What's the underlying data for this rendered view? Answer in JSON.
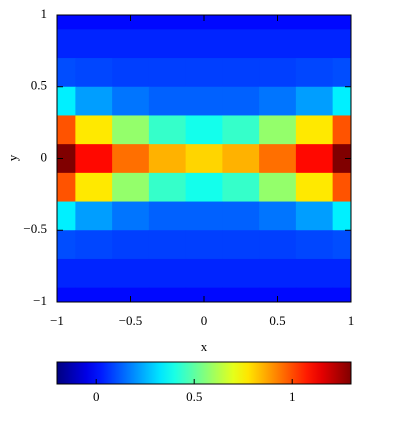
{
  "chart_data": {
    "type": "heatmap",
    "colormap": "jet",
    "xlabel": "x",
    "ylabel": "y",
    "x": [
      -1,
      -0.75,
      -0.5,
      -0.25,
      0,
      0.25,
      0.5,
      0.75,
      1
    ],
    "y": [
      1,
      0.8,
      0.6,
      0.4,
      0.2,
      0,
      -0.2,
      -0.4,
      -0.6,
      -0.8,
      -1
    ],
    "values": [
      [
        0,
        0,
        0,
        0,
        0,
        0,
        0,
        0,
        0
      ],
      [
        0.04,
        0.04,
        0.04,
        0.04,
        0.04,
        0.04,
        0.04,
        0.04,
        0.04
      ],
      [
        0.1,
        0.09,
        0.08,
        0.08,
        0.08,
        0.08,
        0.08,
        0.09,
        0.1
      ],
      [
        0.34,
        0.22,
        0.16,
        0.13,
        0.13,
        0.13,
        0.16,
        0.22,
        0.34
      ],
      [
        0.99,
        0.77,
        0.58,
        0.44,
        0.39,
        0.44,
        0.58,
        0.77,
        0.99
      ],
      [
        1.3,
        1.1,
        0.95,
        0.85,
        0.8,
        0.85,
        0.95,
        1.1,
        1.3
      ],
      [
        0.99,
        0.77,
        0.58,
        0.44,
        0.39,
        0.44,
        0.58,
        0.77,
        0.99
      ],
      [
        0.34,
        0.22,
        0.16,
        0.13,
        0.13,
        0.13,
        0.16,
        0.22,
        0.34
      ],
      [
        0.1,
        0.09,
        0.08,
        0.08,
        0.08,
        0.08,
        0.08,
        0.09,
        0.1
      ],
      [
        0.04,
        0.04,
        0.04,
        0.04,
        0.04,
        0.04,
        0.04,
        0.04,
        0.04
      ],
      [
        0,
        0,
        0,
        0,
        0,
        0,
        0,
        0,
        0
      ]
    ],
    "xlim": [
      -1,
      1
    ],
    "ylim": [
      -1,
      1
    ],
    "xticks": [
      {
        "value": -1,
        "label": "−1"
      },
      {
        "value": -0.5,
        "label": "−0.5"
      },
      0,
      0.5,
      1
    ],
    "yticks": [
      {
        "value": -1,
        "label": "−1"
      },
      {
        "value": -0.5,
        "label": "−0.5"
      },
      0,
      0.5,
      1
    ],
    "clim": [
      -0.2,
      1.3
    ],
    "cticks": [
      0,
      0.5,
      1
    ]
  }
}
